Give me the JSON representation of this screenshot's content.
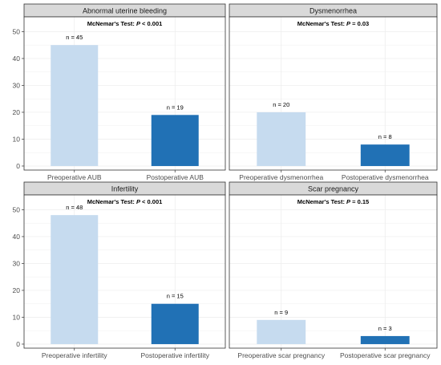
{
  "colors": {
    "preoperative": "#c6dbef",
    "postoperative": "#2171b5",
    "strip_fill": "#d9d9d9",
    "strip_border": "#333333",
    "panel_border": "#333333",
    "grid": "#ebebeb"
  },
  "chart_data": [
    {
      "type": "bar",
      "title": "Abnormal uterine bleeding",
      "test_prefix": "McNemar's Test: ",
      "test_p_symbol": "P",
      "test_value": " < 0.001",
      "categories": [
        "Preoperative AUB",
        "Postoperative AUB"
      ],
      "values": [
        45,
        19
      ],
      "labels": [
        "n = 45",
        "n = 19"
      ],
      "yticks": [
        "0",
        "10",
        "20",
        "30",
        "40",
        "50"
      ],
      "ylim": [
        -1.5,
        55.5
      ]
    },
    {
      "type": "bar",
      "title": "Dysmenorrhea",
      "test_prefix": "McNemar's Test: ",
      "test_p_symbol": "P",
      "test_value": " = 0.03",
      "categories": [
        "Preoperative dysmenorrhea",
        "Postoperative dysmenorrhea"
      ],
      "values": [
        20,
        8
      ],
      "labels": [
        "n = 20",
        "n = 8"
      ],
      "yticks": [],
      "ylim": [
        -1.5,
        55.5
      ]
    },
    {
      "type": "bar",
      "title": "Infertility",
      "test_prefix": "McNemar's Test: ",
      "test_p_symbol": "P",
      "test_value": " < 0.001",
      "categories": [
        "Preoperative infertility",
        "Postoperative infertility"
      ],
      "values": [
        48,
        15
      ],
      "labels": [
        "n = 48",
        "n = 15"
      ],
      "yticks": [
        "0",
        "10",
        "20",
        "30",
        "40",
        "50"
      ],
      "ylim": [
        -1.5,
        55.5
      ]
    },
    {
      "type": "bar",
      "title": "Scar pregnancy",
      "test_prefix": "McNemar's Test: ",
      "test_p_symbol": "P",
      "test_value": " = 0.15",
      "categories": [
        "Preoperative scar pregnancy",
        "Postoperative scar pregnancy"
      ],
      "values": [
        9,
        3
      ],
      "labels": [
        "n = 9",
        "n = 3"
      ],
      "yticks": [],
      "ylim": [
        -1.5,
        55.5
      ]
    }
  ]
}
